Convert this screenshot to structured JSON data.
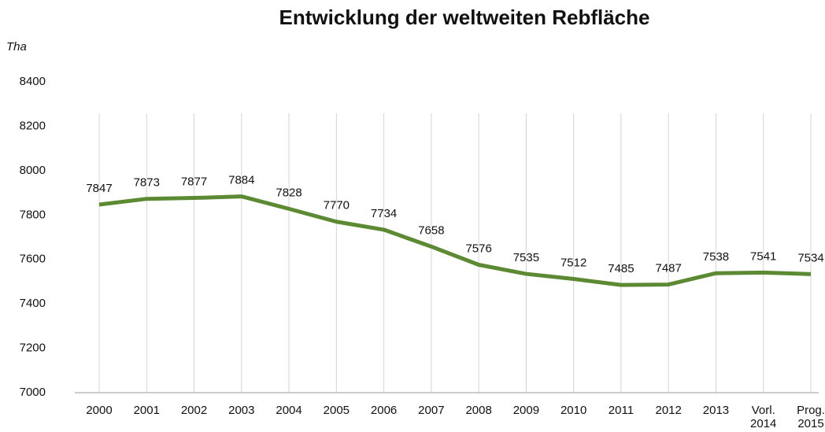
{
  "chart_data": {
    "type": "line",
    "title": "Entwicklung der weltweiten Rebfläche",
    "y_label": "Tha",
    "categories": [
      "2000",
      "2001",
      "2002",
      "2003",
      "2004",
      "2005",
      "2006",
      "2007",
      "2008",
      "2009",
      "2010",
      "2011",
      "2012",
      "2013",
      "Vorl. 2014",
      "Prog. 2015"
    ],
    "values": [
      7847,
      7873,
      7877,
      7884,
      7828,
      7770,
      7734,
      7658,
      7576,
      7535,
      7512,
      7485,
      7487,
      7538,
      7541,
      7534
    ],
    "color": "#5b8a33",
    "ylim": [
      7000,
      8400
    ],
    "yticks": [
      7000,
      7200,
      7400,
      7600,
      7800,
      8000,
      8200,
      8400
    ],
    "grid": "vertical"
  }
}
